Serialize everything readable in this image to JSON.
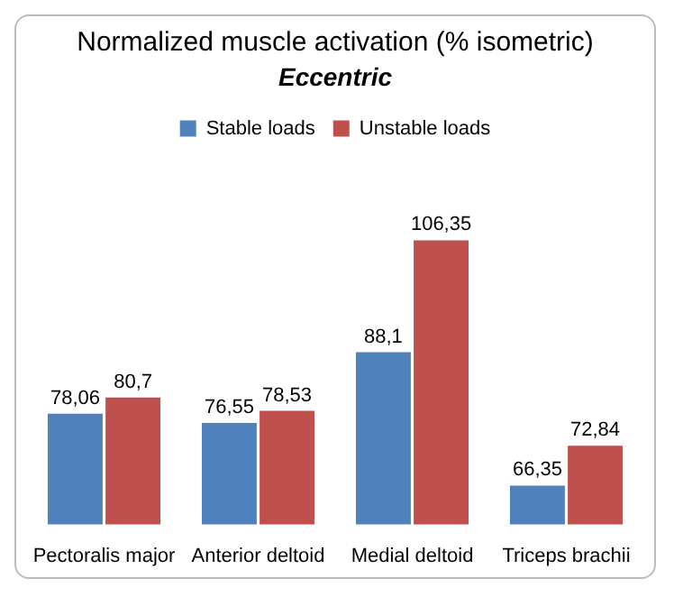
{
  "chart_data": {
    "type": "bar",
    "title": "Normalized muscle activation (% isometric)",
    "subtitle": "Eccentric",
    "categories": [
      "Pectoralis major",
      "Anterior deltoid",
      "Medial deltoid",
      "Triceps brachii"
    ],
    "series": [
      {
        "name": "Stable loads",
        "color": "#4f81bd",
        "values": [
          78.06,
          76.55,
          88.1,
          66.35
        ],
        "value_labels": [
          "78,06",
          "76,55",
          "88,1",
          "66,35"
        ]
      },
      {
        "name": "Unstable loads",
        "color": "#c0504d",
        "values": [
          80.7,
          78.53,
          106.35,
          72.84
        ],
        "value_labels": [
          "80,7",
          "78,53",
          "106,35",
          "72,84"
        ]
      }
    ],
    "legend": "top",
    "grid": false,
    "tick_labels": "x"
  }
}
